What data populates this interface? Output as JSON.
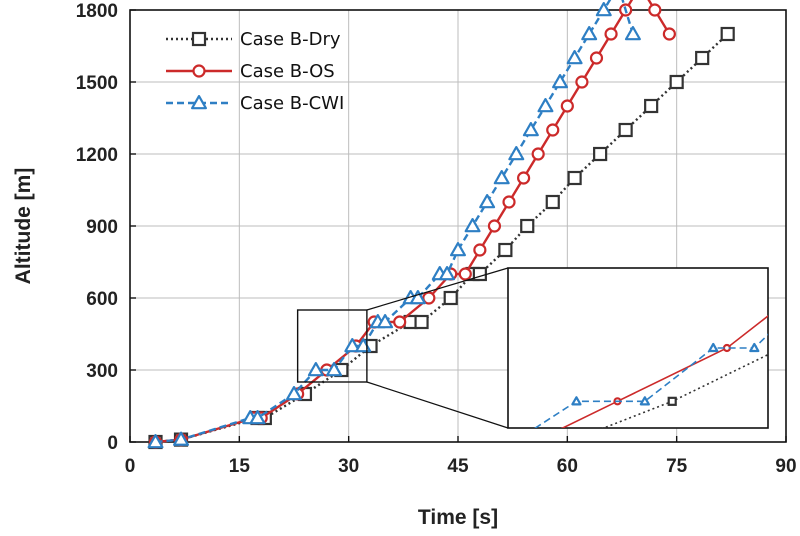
{
  "chart_data": {
    "type": "line",
    "title": "",
    "xlabel": "Time [s]",
    "ylabel": "Altitude [m]",
    "xlim": [
      0,
      90
    ],
    "ylim": [
      0,
      1800
    ],
    "xticks": [
      0,
      15,
      30,
      45,
      60,
      75,
      90
    ],
    "yticks": [
      0,
      300,
      600,
      900,
      1200,
      1500,
      1800
    ],
    "grid": true,
    "legend_position": "top-left",
    "series": [
      {
        "name": "Case B-Dry",
        "color": "#333333",
        "line_style": "dotted",
        "marker": "square",
        "x": [
          3.5,
          7.0,
          17.5,
          18.5,
          24.0,
          29.0,
          33.0,
          38.5,
          40.0,
          44.0,
          47.0,
          48.0,
          51.5,
          54.5,
          58.0,
          61.0,
          64.5,
          68.0,
          71.5,
          75.0,
          78.5,
          82.0
        ],
        "y": [
          0,
          10,
          100,
          100,
          200,
          300,
          400,
          500,
          500,
          600,
          700,
          700,
          800,
          900,
          1000,
          1100,
          1200,
          1300,
          1400,
          1500,
          1600,
          1700
        ]
      },
      {
        "name": "Case B-OS",
        "color": "#cc2a2a",
        "line_style": "solid",
        "marker": "circle",
        "x": [
          3.5,
          7.0,
          17.0,
          18.0,
          23.0,
          27.0,
          31.0,
          33.5,
          37.0,
          41.0,
          44.0,
          46.0,
          48.0,
          50.0,
          52.0,
          54.0,
          56.0,
          58.0,
          60.0,
          62.0,
          64.0,
          66.0,
          68.0,
          70.0,
          72.0,
          74.0
        ],
        "y": [
          0,
          10,
          100,
          100,
          200,
          300,
          400,
          500,
          500,
          600,
          700,
          700,
          800,
          900,
          1000,
          1100,
          1200,
          1300,
          1400,
          1500,
          1600,
          1700,
          1800,
          1900,
          1800,
          1700
        ]
      },
      {
        "name": "Case B-CWI",
        "color": "#2e7fc4",
        "line_style": "dashed",
        "marker": "triangle",
        "x": [
          3.5,
          7.0,
          16.5,
          17.5,
          22.5,
          25.5,
          28.0,
          30.5,
          32.0,
          34.0,
          35.0,
          38.5,
          39.5,
          42.5,
          43.5,
          45.0,
          47.0,
          49.0,
          51.0,
          53.0,
          55.0,
          57.0,
          59.0,
          61.0,
          63.0,
          65.0,
          67.0,
          69.0
        ],
        "y": [
          0,
          10,
          100,
          100,
          200,
          300,
          300,
          400,
          400,
          500,
          500,
          600,
          600,
          700,
          700,
          800,
          900,
          1000,
          1100,
          1200,
          1300,
          1400,
          1500,
          1600,
          1700,
          1800,
          1900,
          1700
        ]
      }
    ],
    "annotations": [
      {
        "type": "zoom-inset",
        "source_region": {
          "x": [
            23.0,
            32.5
          ],
          "y": [
            250,
            550
          ]
        },
        "shows_series": [
          "Case B-Dry",
          "Case B-OS",
          "Case B-CWI"
        ]
      }
    ]
  }
}
